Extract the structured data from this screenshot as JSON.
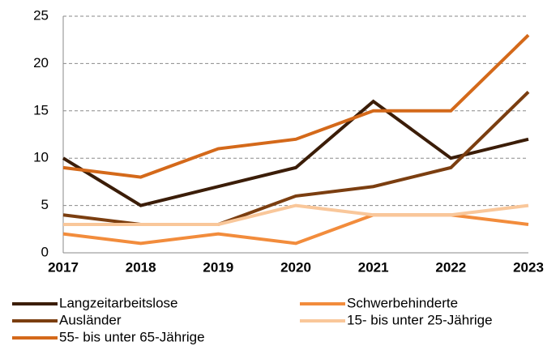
{
  "chart_data": {
    "type": "line",
    "categories": [
      "2017",
      "2018",
      "2019",
      "2020",
      "2021",
      "2022",
      "2023"
    ],
    "series": [
      {
        "name": "Langzeitarbeitslose",
        "color": "#3b1d08",
        "values": [
          10,
          5,
          7,
          9,
          16,
          10,
          12
        ]
      },
      {
        "name": "Schwerbehinderte",
        "color": "#f28c3c",
        "values": [
          2,
          1,
          2,
          1,
          4,
          4,
          3
        ]
      },
      {
        "name": "Ausländer",
        "color": "#7b3e10",
        "values": [
          4,
          3,
          3,
          6,
          7,
          9,
          17
        ]
      },
      {
        "name": "15- bis unter 25-Jährige",
        "color": "#f9c79a",
        "values": [
          3,
          3,
          3,
          5,
          4,
          4,
          5
        ]
      },
      {
        "name": "55- bis unter 65-Jährige",
        "color": "#d4691a",
        "values": [
          9,
          8,
          11,
          12,
          15,
          15,
          23
        ]
      }
    ],
    "ylim": [
      0,
      25
    ],
    "yticks": [
      0,
      5,
      10,
      15,
      20,
      25
    ],
    "grid": true
  }
}
